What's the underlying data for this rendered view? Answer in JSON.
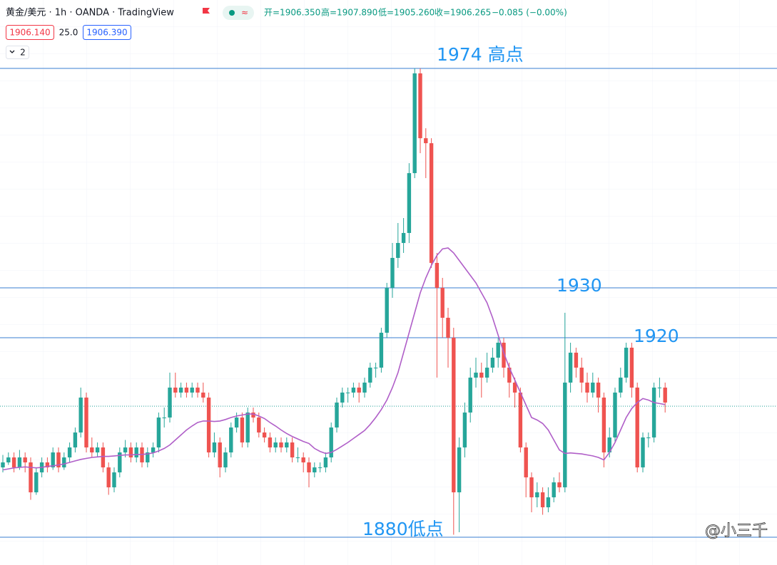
{
  "chart_data": {
    "type": "candlestick",
    "title": "黄金/美元 · 1h · OANDA · TradingView",
    "ohlc_header": [
      "开=1906.350",
      "高=1907.890",
      "低=1905.260",
      "收=1906.265",
      "−0.085 (−0.00%)"
    ],
    "bid": "1906.140",
    "spread": "25.0",
    "ask": "1906.390",
    "indicator_count": "2",
    "watermark": "@小三千",
    "ylim": [
      1874.43,
      1987.71
    ],
    "up_color": "#26a69a",
    "down_color": "#ef5350",
    "candles": [
      [
        1894,
        1896.5,
        1893,
        1895
      ],
      [
        1895,
        1897,
        1894.5,
        1896
      ],
      [
        1896,
        1897,
        1893,
        1894
      ],
      [
        1894,
        1897.5,
        1893.5,
        1896
      ],
      [
        1896,
        1897,
        1893,
        1895
      ],
      [
        1895,
        1896,
        1887.5,
        1889
      ],
      [
        1889,
        1894,
        1888.5,
        1893
      ],
      [
        1893,
        1896,
        1892,
        1895
      ],
      [
        1895,
        1896,
        1893,
        1894
      ],
      [
        1894,
        1898,
        1893.5,
        1897
      ],
      [
        1897,
        1898,
        1893,
        1894
      ],
      [
        1894,
        1897,
        1893.5,
        1896
      ],
      [
        1896,
        1899,
        1895,
        1898
      ],
      [
        1898,
        1902,
        1897,
        1901
      ],
      [
        1901,
        1910,
        1900,
        1908
      ],
      [
        1908,
        1909,
        1897,
        1898
      ],
      [
        1898,
        1900,
        1896,
        1897
      ],
      [
        1897,
        1899,
        1896,
        1898
      ],
      [
        1898,
        1899,
        1893,
        1894
      ],
      [
        1894,
        1895,
        1888.5,
        1890
      ],
      [
        1890,
        1894,
        1889,
        1893
      ],
      [
        1893,
        1898,
        1892,
        1897
      ],
      [
        1897,
        1899.5,
        1896,
        1898
      ],
      [
        1898,
        1899,
        1895,
        1896
      ],
      [
        1896,
        1899,
        1895,
        1898
      ],
      [
        1898,
        1899,
        1894,
        1895
      ],
      [
        1895,
        1898,
        1894,
        1897
      ],
      [
        1897,
        1899,
        1896,
        1898
      ],
      [
        1898,
        1905,
        1897,
        1904
      ],
      [
        1904,
        1906,
        1902,
        1904
      ],
      [
        1904,
        1913,
        1903,
        1910
      ],
      [
        1910,
        1913,
        1908,
        1909
      ],
      [
        1909,
        1911,
        1908,
        1910
      ],
      [
        1910,
        1911,
        1908,
        1909
      ],
      [
        1909,
        1911,
        1908,
        1910
      ],
      [
        1910,
        1911,
        1908,
        1909
      ],
      [
        1909,
        1911,
        1907,
        1908
      ],
      [
        1908,
        1909,
        1896,
        1897
      ],
      [
        1897,
        1901,
        1896,
        1899
      ],
      [
        1899,
        1900,
        1892,
        1894
      ],
      [
        1894,
        1898,
        1893,
        1897
      ],
      [
        1897,
        1903,
        1896,
        1902
      ],
      [
        1902,
        1905,
        1901,
        1904
      ],
      [
        1904,
        1905,
        1898,
        1899
      ],
      [
        1899,
        1906,
        1898,
        1905
      ],
      [
        1905,
        1906,
        1903,
        1904
      ],
      [
        1904,
        1905,
        1900,
        1901
      ],
      [
        1901,
        1902,
        1899,
        1900
      ],
      [
        1900,
        1901,
        1897,
        1898
      ],
      [
        1898,
        1900,
        1897,
        1899
      ],
      [
        1899,
        1900,
        1897,
        1898
      ],
      [
        1898,
        1900,
        1897,
        1899
      ],
      [
        1899,
        1900,
        1895,
        1896
      ],
      [
        1896,
        1898,
        1895,
        1896
      ],
      [
        1896,
        1897,
        1893,
        1895
      ],
      [
        1895,
        1896,
        1890,
        1893
      ],
      [
        1893,
        1895,
        1892,
        1894
      ],
      [
        1894,
        1895,
        1893,
        1894
      ],
      [
        1894,
        1897,
        1893,
        1896
      ],
      [
        1896,
        1903,
        1895,
        1902
      ],
      [
        1902,
        1908,
        1901,
        1907
      ],
      [
        1907,
        1910,
        1906,
        1909
      ],
      [
        1909,
        1910,
        1907,
        1909
      ],
      [
        1909,
        1911,
        1908,
        1910
      ],
      [
        1910,
        1911,
        1907,
        1909
      ],
      [
        1909,
        1912,
        1908,
        1911
      ],
      [
        1911,
        1915,
        1910,
        1914
      ],
      [
        1914,
        1915,
        1912,
        1914
      ],
      [
        1914,
        1922,
        1913,
        1921
      ],
      [
        1921,
        1931,
        1920,
        1930
      ],
      [
        1930,
        1939,
        1928,
        1936
      ],
      [
        1936,
        1943,
        1934,
        1939
      ],
      [
        1939,
        1944,
        1937,
        1941
      ],
      [
        1941,
        1955,
        1939,
        1953
      ],
      [
        1953,
        1974,
        1952,
        1973
      ],
      [
        1973,
        1974,
        1957,
        1960
      ],
      [
        1960,
        1962,
        1952,
        1959
      ],
      [
        1959,
        1960,
        1934,
        1935
      ],
      [
        1935,
        1937,
        1912,
        1930
      ],
      [
        1930,
        1932,
        1920,
        1924
      ],
      [
        1924,
        1926,
        1914,
        1920
      ],
      [
        1920,
        1922,
        1880.5,
        1889
      ],
      [
        1889,
        1900,
        1881,
        1898
      ],
      [
        1898,
        1907,
        1896,
        1905
      ],
      [
        1905,
        1914,
        1903,
        1912
      ],
      [
        1912,
        1916,
        1910,
        1913
      ],
      [
        1913,
        1915,
        1908,
        1912
      ],
      [
        1912,
        1917,
        1911,
        1914
      ],
      [
        1914,
        1918,
        1913,
        1916
      ],
      [
        1916,
        1920,
        1914,
        1919
      ],
      [
        1919,
        1920,
        1912,
        1914
      ],
      [
        1914,
        1915,
        1908,
        1911
      ],
      [
        1911,
        1912,
        1906,
        1909
      ],
      [
        1909,
        1910,
        1897,
        1898
      ],
      [
        1898,
        1899,
        1888,
        1892
      ],
      [
        1892,
        1893,
        1885,
        1888
      ],
      [
        1888,
        1891,
        1886,
        1889
      ],
      [
        1889,
        1890,
        1884.5,
        1886
      ],
      [
        1886,
        1890,
        1885,
        1888
      ],
      [
        1888,
        1892,
        1887,
        1891
      ],
      [
        1891,
        1893,
        1889,
        1890
      ],
      [
        1890,
        1925,
        1889,
        1911
      ],
      [
        1911,
        1919,
        1909,
        1917
      ],
      [
        1917,
        1918,
        1912,
        1914
      ],
      [
        1914,
        1916,
        1909,
        1911
      ],
      [
        1911,
        1913,
        1907,
        1909
      ],
      [
        1909,
        1913,
        1908,
        1911
      ],
      [
        1911,
        1912,
        1905,
        1908
      ],
      [
        1908,
        1909,
        1894,
        1897
      ],
      [
        1897,
        1902,
        1896,
        1900
      ],
      [
        1900,
        1910,
        1899,
        1909
      ],
      [
        1909,
        1914,
        1908,
        1912
      ],
      [
        1912,
        1919,
        1911,
        1918
      ],
      [
        1918,
        1919,
        1908,
        1910
      ],
      [
        1910,
        1911,
        1893,
        1894
      ],
      [
        1894,
        1901,
        1893,
        1900
      ],
      [
        1900,
        1901,
        1898,
        1900
      ],
      [
        1900,
        1911,
        1899,
        1910
      ],
      [
        1910,
        1912,
        1908,
        1910
      ],
      [
        1910,
        1911,
        1905,
        1907
      ]
    ],
    "ma": {
      "color": "#b05fc8",
      "values": [
        1893.5,
        1893.7,
        1893.9,
        1894,
        1894.1,
        1894,
        1893.9,
        1894,
        1894.2,
        1894.3,
        1894.5,
        1894.7,
        1895,
        1895.3,
        1895.6,
        1895.8,
        1896,
        1896.1,
        1896.2,
        1896.2,
        1896.3,
        1896.4,
        1896.5,
        1896.5,
        1896.6,
        1896.6,
        1896.7,
        1896.9,
        1897.3,
        1897.8,
        1898.5,
        1899.5,
        1900.5,
        1901.5,
        1902.3,
        1903,
        1903.3,
        1903.3,
        1903.2,
        1903.3,
        1903.6,
        1904,
        1904.3,
        1904.5,
        1904.7,
        1904.7,
        1904.3,
        1903.8,
        1903,
        1902.3,
        1901.5,
        1900.8,
        1900.2,
        1899.7,
        1899.2,
        1898.8,
        1897.8,
        1897.2,
        1896.8,
        1897,
        1897.6,
        1898.3,
        1899,
        1899.8,
        1900.6,
        1901.4,
        1902.6,
        1904,
        1905.6,
        1907.5,
        1910,
        1913,
        1917,
        1921,
        1925,
        1929,
        1932,
        1934.5,
        1936.5,
        1937.8,
        1938,
        1937,
        1935.5,
        1934,
        1932.5,
        1931,
        1929,
        1927,
        1924,
        1920.5,
        1917,
        1914,
        1911.5,
        1909,
        1906.5,
        1904,
        1903.5,
        1902.8,
        1901.5,
        1899.5,
        1897.5,
        1896.8,
        1896.9,
        1896.8,
        1896.7,
        1896.5,
        1896.3,
        1896,
        1895.5,
        1897,
        1899,
        1901.5,
        1904,
        1905.8,
        1907,
        1907.8,
        1907.5,
        1907,
        1906.8,
        1906.6
      ]
    },
    "last_price": 1906.265,
    "levels": [
      {
        "value": 1974,
        "label": "1974 高点"
      },
      {
        "value": 1930,
        "label": "1930"
      },
      {
        "value": 1920,
        "label": "1920"
      },
      {
        "value": 1880,
        "label": "1880低点"
      }
    ],
    "level_color": "#3a7fd0"
  }
}
